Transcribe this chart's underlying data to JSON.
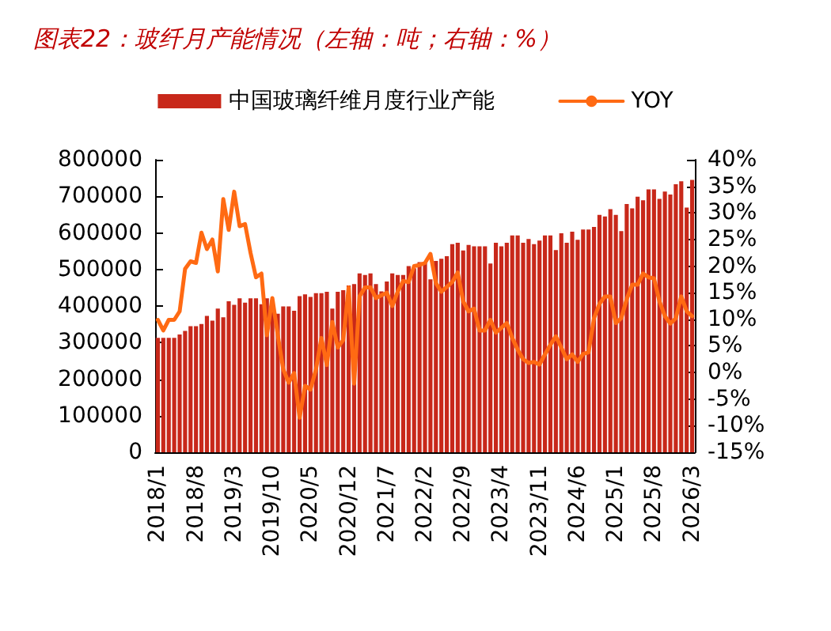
{
  "chart_data": {
    "type": "bar",
    "title": "图表22：玻纤月产能情况（左轴：吨；右轴：%）",
    "categories": [
      "2018/1",
      null,
      null,
      null,
      null,
      null,
      null,
      "2018/8",
      null,
      null,
      null,
      null,
      null,
      null,
      "2019/3",
      null,
      null,
      null,
      null,
      null,
      null,
      "2019/10",
      null,
      null,
      null,
      null,
      null,
      null,
      "2020/5",
      null,
      null,
      null,
      null,
      null,
      null,
      "2020/12",
      null,
      null,
      null,
      null,
      null,
      null,
      "2021/7",
      null,
      null,
      null,
      null,
      null,
      null,
      "2022/2",
      null,
      null,
      null,
      null,
      null,
      null,
      "2022/9",
      null,
      null,
      null,
      null,
      null,
      null,
      "2023/4",
      null,
      null,
      null,
      null,
      null,
      null,
      "2023/11",
      null,
      null,
      null,
      null,
      null,
      null,
      "2024/6",
      null,
      null,
      null,
      null,
      null,
      null,
      "2025/1",
      null,
      null,
      null,
      null,
      null,
      null,
      "2025/8",
      null,
      null,
      null,
      null,
      null,
      null,
      "2026/3"
    ],
    "series": [
      {
        "name": "中国玻璃纤维月度行业产能",
        "color": "#c8281a",
        "values": [
          313000,
          313000,
          313000,
          313000,
          322000,
          332000,
          345000,
          345000,
          351000,
          373000,
          360000,
          393000,
          369000,
          413000,
          403000,
          421000,
          409000,
          421000,
          421000,
          405000,
          421000,
          416000,
          379000,
          399000,
          399000,
          387000,
          427000,
          432000,
          425000,
          435000,
          435000,
          439000,
          393000,
          439000,
          443000,
          456000,
          460000,
          489000,
          485000,
          489000,
          460000,
          440000,
          467000,
          489000,
          485000,
          485000,
          509000,
          503000,
          520000,
          520000,
          473000,
          523000,
          529000,
          536000,
          569000,
          573000,
          552000,
          567000,
          563000,
          563000,
          563000,
          516000,
          573000,
          563000,
          573000,
          593000,
          593000,
          573000,
          583000,
          569000,
          579000,
          593000,
          593000,
          553000,
          599000,
          573000,
          603000,
          581000,
          609000,
          609000,
          616000,
          649000,
          645000,
          665000,
          649000,
          605000,
          679000,
          667000,
          699000,
          689000,
          719000,
          719000,
          693000,
          713000,
          705000,
          733000,
          741000,
          669000,
          745000
        ]
      },
      {
        "name": "YOY",
        "type": "line",
        "axis": "y2",
        "color": "#ff6a13",
        "values": [
          9.9,
          7.9,
          9.9,
          9.9,
          11.5,
          19.5,
          20.9,
          20.6,
          26.3,
          23.2,
          25,
          19,
          32.6,
          26.8,
          34,
          27.5,
          27.9,
          22.5,
          17.9,
          18.6,
          7,
          14,
          7,
          0.6,
          -1.9,
          -0.1,
          -8.5,
          -2.5,
          -3.2,
          0.6,
          6.5,
          1.4,
          9.5,
          4.7,
          6.1,
          16,
          -2.1,
          14.3,
          16,
          16,
          14,
          14.5,
          15,
          12.5,
          15.2,
          17.2,
          17,
          20,
          20.2,
          20.6,
          22.3,
          16.8,
          15.2,
          16.1,
          17,
          18.8,
          13.4,
          11.5,
          12,
          7.9,
          7.9,
          9.9,
          7.5,
          8.4,
          9.3,
          6.5,
          4.3,
          2.5,
          1.8,
          2,
          1.5,
          3.4,
          5.2,
          6.8,
          4.7,
          2.5,
          3.4,
          2,
          3.5,
          3.8,
          10.2,
          12.9,
          14.3,
          14.3,
          9.3,
          10.2,
          13.8,
          16.5,
          16.5,
          18.6,
          17.9,
          17.7,
          13.4,
          10.6,
          9.2,
          10.2,
          14.3,
          11.5,
          10.6
        ]
      }
    ],
    "ylim": [
      0,
      800000
    ],
    "yticks": [
      0,
      100000,
      200000,
      300000,
      400000,
      500000,
      600000,
      700000,
      800000
    ],
    "y2lim": [
      -15,
      40
    ],
    "y2ticks": [
      {
        "value": -15,
        "label": "-15%"
      },
      {
        "value": -10,
        "label": "-10%"
      },
      {
        "value": -5,
        "label": "-5%"
      },
      {
        "value": 0,
        "label": "0%"
      },
      {
        "value": 5,
        "label": "5%"
      },
      {
        "value": 10,
        "label": "10%"
      },
      {
        "value": 15,
        "label": "15%"
      },
      {
        "value": 20,
        "label": "20%"
      },
      {
        "value": 25,
        "label": "25%"
      },
      {
        "value": 30,
        "label": "30%"
      },
      {
        "value": 35,
        "label": "35%"
      },
      {
        "value": 40,
        "label": "40%"
      }
    ],
    "legend": "top",
    "grid": false,
    "marker": "none",
    "line_style": "solid"
  }
}
